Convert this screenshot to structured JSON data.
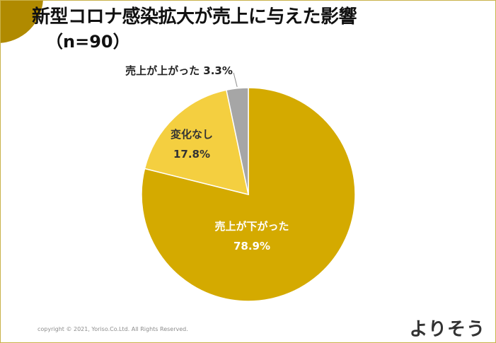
{
  "header": {
    "title": "新型コロナ感染拡大が売上に与えた影響",
    "sample": "（n=90）"
  },
  "chart_data": {
    "type": "pie",
    "slices": [
      {
        "label": "売上が下がった",
        "value": 78.9,
        "value_label": "78.9%",
        "color": "#d4aa00"
      },
      {
        "label": "変化なし",
        "value": 17.8,
        "value_label": "17.8%",
        "color": "#f4cf40"
      },
      {
        "label": "売上が上がった",
        "value": 3.3,
        "value_label": "3.3%",
        "color": "#a6a6a6"
      }
    ],
    "start_angle_deg": 0,
    "direction": "clockwise",
    "label_placement": {
      "売上が下がった": "inside",
      "変化なし": "inside",
      "売上が上がった": "outside-with-leader"
    }
  },
  "footer": {
    "copyright": "copyright © 2021, Yoriso.Co.Ltd. All Rights Reserved.",
    "brand": "よりそう",
    "brand_color": "#333333",
    "accent_color": "#f2c500"
  }
}
